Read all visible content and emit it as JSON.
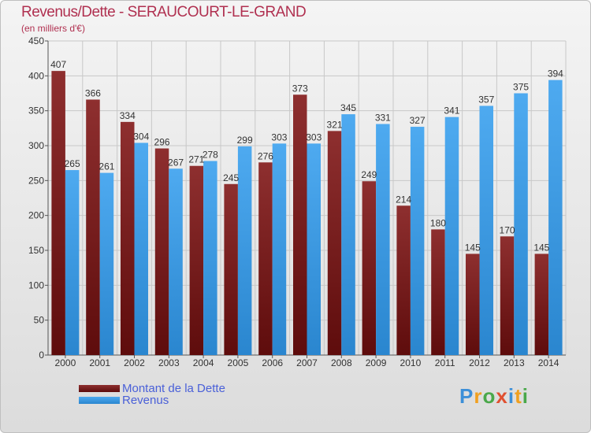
{
  "chart_data": {
    "type": "bar",
    "title": "Revenus/Dette - SERAUCOURT-LE-GRAND",
    "subtitle": "(en milliers d'€)",
    "categories": [
      "2000",
      "2001",
      "2002",
      "2003",
      "2004",
      "2005",
      "2006",
      "2007",
      "2008",
      "2009",
      "2010",
      "2011",
      "2012",
      "2013",
      "2014"
    ],
    "series": [
      {
        "name": "Montant de la Dette",
        "color": "#7a1c1c",
        "values": [
          407,
          366,
          334,
          296,
          271,
          245,
          276,
          373,
          321,
          249,
          214,
          180,
          145,
          170,
          145
        ]
      },
      {
        "name": "Revenus",
        "color": "#3d9de0",
        "values": [
          265,
          261,
          304,
          267,
          278,
          299,
          303,
          303,
          345,
          331,
          327,
          341,
          357,
          375,
          394
        ]
      }
    ],
    "ylim": [
      0,
      450
    ],
    "yticks": [
      0,
      50,
      100,
      150,
      200,
      250,
      300,
      350,
      400,
      450
    ],
    "grid": true,
    "legend_position": "bottom-left"
  },
  "logo": {
    "letters": [
      "P",
      "r",
      "o",
      "x",
      "i",
      "t",
      "i"
    ],
    "colors": [
      "#3c8fd8",
      "#f0a020",
      "#4aa84a",
      "#e05030",
      "#3c8fd8",
      "#f0a020",
      "#4aa84a"
    ]
  }
}
